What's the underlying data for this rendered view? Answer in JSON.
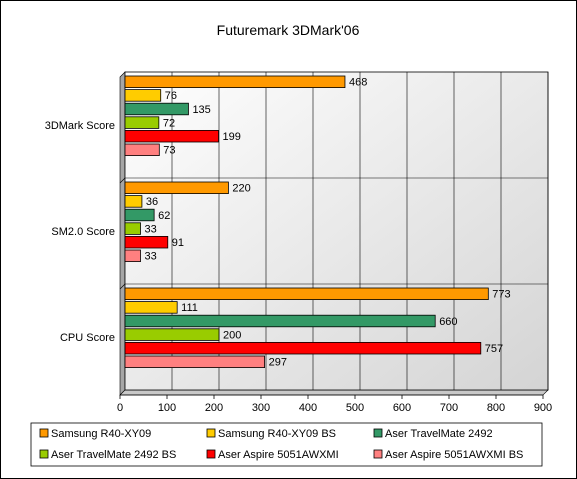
{
  "chart_data": {
    "type": "bar",
    "orientation": "horizontal",
    "title": "Futuremark 3DMark'06",
    "xlabel": "",
    "ylabel": "",
    "xlim": [
      0,
      900
    ],
    "xticks": [
      0,
      100,
      200,
      300,
      400,
      500,
      600,
      700,
      800,
      900
    ],
    "grid": true,
    "legend_position": "bottom",
    "categories": [
      "3DMark Score",
      "SM2.0 Score",
      "CPU Score"
    ],
    "series": [
      {
        "name": "Samsung R40-XY09",
        "color": "#ff9900",
        "values": [
          468,
          220,
          773
        ]
      },
      {
        "name": "Samsung R40-XY09 BS",
        "color": "#ffcc00",
        "values": [
          76,
          36,
          111
        ]
      },
      {
        "name": "Aser TravelMate 2492",
        "color": "#339966",
        "values": [
          135,
          62,
          660
        ]
      },
      {
        "name": "Aser TravelMate 2492 BS",
        "color": "#99cc00",
        "values": [
          72,
          33,
          200
        ]
      },
      {
        "name": "Aser Aspire 5051AWXMI",
        "color": "#ff0000",
        "values": [
          199,
          91,
          757
        ]
      },
      {
        "name": "Aser Aspire 5051AWXMI BS",
        "color": "#ff8080",
        "values": [
          73,
          33,
          297
        ]
      }
    ]
  }
}
